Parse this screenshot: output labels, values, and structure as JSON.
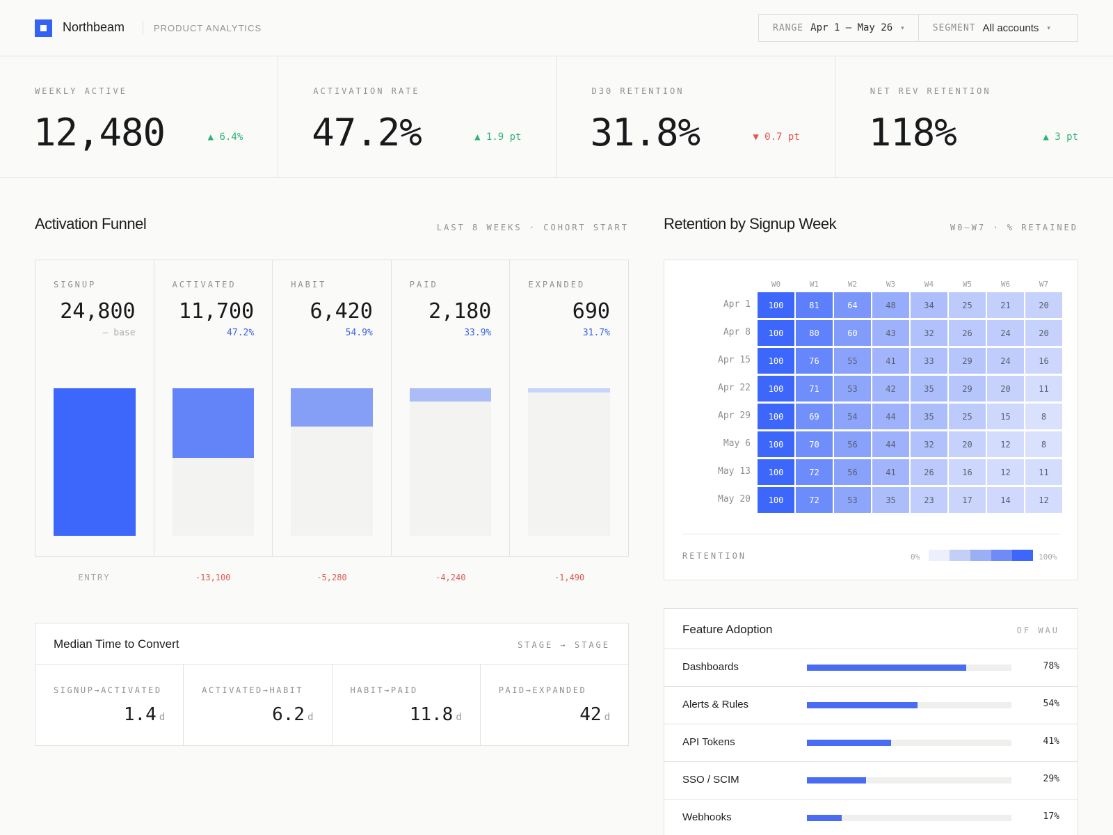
{
  "header": {
    "brand": "Northbeam",
    "product": "PRODUCT ANALYTICS",
    "range_label": "RANGE",
    "range_value": "Apr 1 – May 26",
    "segment_label": "SEGMENT",
    "segment_value": "All accounts",
    "caret": "▾"
  },
  "kpis": [
    {
      "label": "WEEKLY ACTIVE",
      "value": "12,480",
      "delta": "▲ 6.4%",
      "trend": "up"
    },
    {
      "label": "ACTIVATION RATE",
      "value": "47.2%",
      "delta": "▲ 1.9 pt",
      "trend": "up"
    },
    {
      "label": "D30 RETENTION",
      "value": "31.8%",
      "delta": "▼ 0.7 pt",
      "trend": "down"
    },
    {
      "label": "NET REV RETENTION",
      "value": "118%",
      "delta": "▲ 3 pt",
      "trend": "up"
    }
  ],
  "funnel": {
    "title": "Activation Funnel",
    "note": "LAST 8 WEEKS · COHORT START",
    "stages": [
      {
        "label": "SIGNUP",
        "value": "24,800",
        "sub": "— base",
        "count": 24800,
        "color": "#3d66fa",
        "drop": "ENTRY"
      },
      {
        "label": "ACTIVATED",
        "value": "11,700",
        "sub": "47.2%",
        "count": 11700,
        "color": "#6384f8",
        "drop": "-13,100"
      },
      {
        "label": "HABIT",
        "value": "6,420",
        "sub": "54.9%",
        "count": 6420,
        "color": "#859ff6",
        "drop": "-5,280"
      },
      {
        "label": "PAID",
        "value": "2,180",
        "sub": "33.9%",
        "count": 2180,
        "color": "#abbcf6",
        "drop": "-4,240"
      },
      {
        "label": "EXPANDED",
        "value": "690",
        "sub": "31.7%",
        "count": 690,
        "color": "#c7d3f8",
        "drop": "-1,490"
      }
    ]
  },
  "median": {
    "title": "Median Time to Convert",
    "note": "STAGE → STAGE",
    "unit": "d",
    "cells": [
      {
        "label": "SIGNUP→ACTIVATED",
        "value": "1.4"
      },
      {
        "label": "ACTIVATED→HABIT",
        "value": "6.2"
      },
      {
        "label": "HABIT→PAID",
        "value": "11.8"
      },
      {
        "label": "PAID→EXPANDED",
        "value": "42"
      }
    ]
  },
  "retention": {
    "title": "Retention by Signup Week",
    "note": "W0–W7 · % RETAINED",
    "weeks": [
      "W0",
      "W1",
      "W2",
      "W3",
      "W4",
      "W5",
      "W6",
      "W7"
    ],
    "cohorts": [
      "Apr 1",
      "Apr 8",
      "Apr 15",
      "Apr 22",
      "Apr 29",
      "May 6",
      "May 13",
      "May 20"
    ],
    "values": [
      [
        100,
        81,
        64,
        48,
        34,
        25,
        21,
        20
      ],
      [
        100,
        80,
        60,
        43,
        32,
        26,
        24,
        20
      ],
      [
        100,
        76,
        55,
        41,
        33,
        29,
        24,
        16
      ],
      [
        100,
        71,
        53,
        42,
        35,
        29,
        20,
        11
      ],
      [
        100,
        69,
        54,
        44,
        35,
        25,
        15,
        8
      ],
      [
        100,
        70,
        56,
        44,
        32,
        20,
        12,
        8
      ],
      [
        100,
        72,
        56,
        41,
        26,
        16,
        12,
        11
      ],
      [
        100,
        72,
        53,
        35,
        23,
        17,
        14,
        12
      ]
    ],
    "legend_label": "RETENTION",
    "legend_min": "0%",
    "legend_max": "100%"
  },
  "features": {
    "title": "Feature Adoption",
    "note": "OF WAU",
    "items": [
      {
        "name": "Dashboards",
        "pct": "78%",
        "value": 78
      },
      {
        "name": "Alerts & Rules",
        "pct": "54%",
        "value": 54
      },
      {
        "name": "API Tokens",
        "pct": "41%",
        "value": 41
      },
      {
        "name": "SSO / SCIM",
        "pct": "29%",
        "value": 29
      },
      {
        "name": "Webhooks",
        "pct": "17%",
        "value": 17
      }
    ]
  },
  "colors": {
    "accent": "#3462f5",
    "up": "#2fb27a",
    "down": "#e5554f",
    "heat_max": "#3d66fa",
    "heat_min": "#e8ecfd"
  }
}
